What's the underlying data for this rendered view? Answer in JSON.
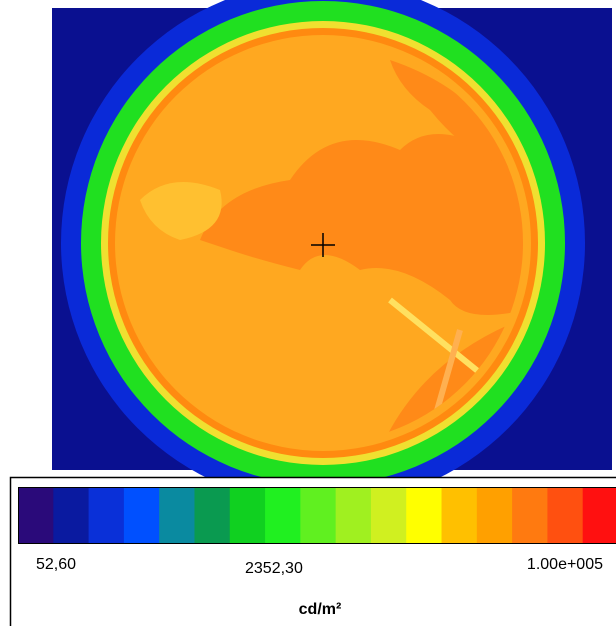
{
  "scale": {
    "labels": [
      "52,60",
      "2352,30",
      "1.00e+005"
    ],
    "unit": "cd/m²",
    "colors": [
      "#2a0a7a",
      "#0a1aa0",
      "#0a30d8",
      "#0050ff",
      "#0a8aa0",
      "#0a9a50",
      "#10d020",
      "#20f020",
      "#60f020",
      "#a0f020",
      "#d0f020",
      "#ffff00",
      "#ffc000",
      "#ffa000",
      "#ff7a10",
      "#ff5010",
      "#ff1010"
    ]
  }
}
